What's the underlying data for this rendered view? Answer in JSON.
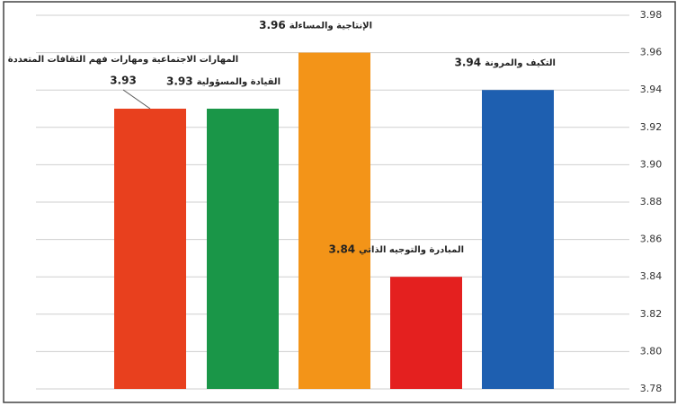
{
  "chart_data": {
    "type": "bar",
    "categories": [
      "المهارات الاجتماعية ومهارات فهم الثقافات المتعددة",
      "القيادة والمسؤولية",
      "الإنتاجية والمساءلة",
      "المبادرة والتوجيه الذاتي",
      "التكيف والمرونة"
    ],
    "values": [
      3.93,
      3.93,
      3.96,
      3.84,
      3.94
    ],
    "colors": [
      "#e8401e",
      "#1a9648",
      "#f39418",
      "#e4201f",
      "#1e5fb0"
    ],
    "ylim": [
      3.78,
      3.98
    ],
    "yticks": [
      {
        "value": 3.78,
        "label": "3.78"
      },
      {
        "value": 3.8,
        "label": "3.80"
      },
      {
        "value": 3.82,
        "label": "3.82"
      },
      {
        "value": 3.84,
        "label": "3.84"
      },
      {
        "value": 3.86,
        "label": "3.86"
      },
      {
        "value": 3.88,
        "label": "3.88"
      },
      {
        "value": 3.9,
        "label": "3.90"
      },
      {
        "value": 3.92,
        "label": "3.92"
      },
      {
        "value": 3.94,
        "label": "3.94"
      },
      {
        "value": 3.96,
        "label": "3.96"
      },
      {
        "value": 3.98,
        "label": "3.98"
      }
    ],
    "grid": true
  }
}
